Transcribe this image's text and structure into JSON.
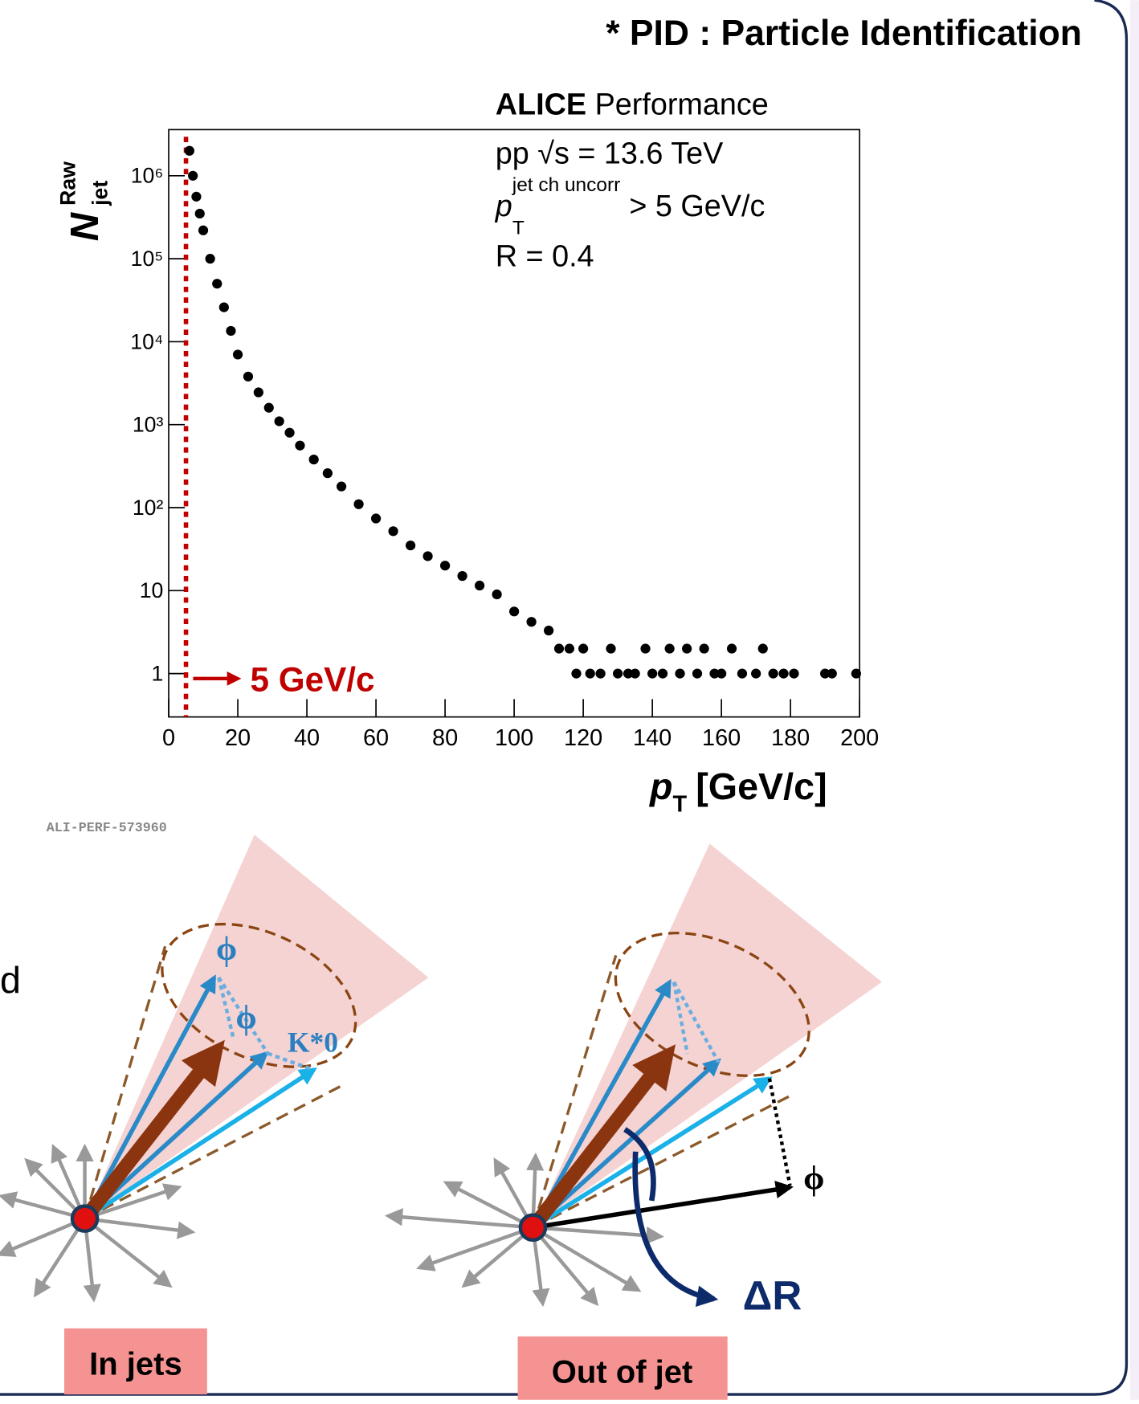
{
  "header": {
    "title": "* PID : Particle Identification"
  },
  "chart_data": {
    "type": "scatter",
    "log_y": true,
    "color": "#000000",
    "x": [
      6,
      7,
      8,
      9,
      10,
      12,
      14,
      16,
      18,
      20,
      23,
      26,
      29,
      32,
      35,
      38,
      42,
      46,
      50,
      55,
      60,
      65,
      70,
      75,
      80,
      85,
      90,
      95,
      100,
      105,
      110,
      113,
      116,
      118,
      120,
      122,
      125,
      128,
      130,
      133,
      135,
      138,
      140,
      143,
      145,
      148,
      150,
      153,
      155,
      158,
      160,
      163,
      166,
      170,
      172,
      175,
      178,
      181,
      190,
      192,
      199
    ],
    "values": [
      2000000,
      1000000,
      560000,
      350000,
      220000,
      100000,
      50000,
      26000,
      13500,
      7000,
      3800,
      2450,
      1600,
      1100,
      800,
      560,
      380,
      260,
      180,
      110,
      74,
      52,
      35,
      26,
      20,
      15,
      11.5,
      9,
      5.6,
      4.2,
      3.3,
      2,
      2,
      1,
      2,
      1,
      1,
      2,
      1,
      1,
      1,
      2,
      1,
      1,
      2,
      1,
      2,
      1,
      2,
      1,
      1,
      2,
      1,
      1,
      2,
      1,
      1,
      1,
      1,
      1,
      1
    ],
    "xlim": [
      0,
      200
    ],
    "xticks": [
      0,
      20,
      40,
      60,
      80,
      100,
      120,
      140,
      160,
      180,
      200
    ],
    "ylim": [
      0.3,
      3600000
    ],
    "yticks": [
      1,
      10,
      {
        "value": 100,
        "label": "10²"
      },
      {
        "value": 1000,
        "label": "10³"
      },
      {
        "value": 10000,
        "label": "10⁴"
      },
      {
        "value": 100000,
        "label": "10⁵"
      },
      {
        "value": 1000000,
        "label": "10⁶"
      }
    ],
    "threshold": {
      "value": 5,
      "color": "#c00000",
      "label": "5 GeV/c"
    },
    "y_label": {
      "main": "N",
      "sub": "jet",
      "sup": "Raw"
    },
    "x_label": {
      "main": "p",
      "sub": "T",
      "unit": "[GeV/c]"
    },
    "legend_text": {
      "experiment": "ALICE",
      "status": "Performance",
      "system": "pp √s = 13.6 TeV",
      "pt_symbol": "p",
      "pt_sub": "T",
      "pt_sup": "jet ch uncorr",
      "pt_cut": "> 5 GeV/c",
      "radius": "R = 0.4"
    },
    "reference": "ALI-PERF-573960"
  },
  "diagram": {
    "side_text": "d",
    "phi_1": "ϕ",
    "phi_2": "ϕ",
    "kstar": "K*0",
    "phi_out": "ϕ",
    "delta_r": "ΔR",
    "in_jets": "In jets",
    "out_of_jet": "Out of jet"
  }
}
